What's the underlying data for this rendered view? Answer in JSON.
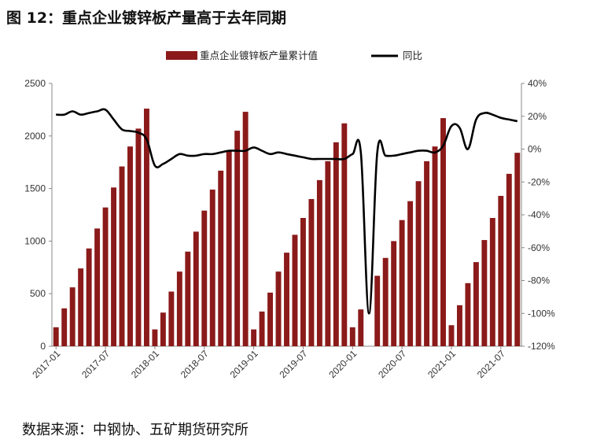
{
  "title": "图 12：重点企业镀锌板产量高于去年同期",
  "source": "数据来源：中钢协、五矿期货研究所",
  "colors": {
    "bar": "#8b1a1a",
    "line": "#000000"
  },
  "chart_data": {
    "type": "bar",
    "title": "",
    "x_tick_labels": [
      "2017-01",
      "2017-07",
      "2018-01",
      "2018-07",
      "2019-01",
      "2019-07",
      "2020-01",
      "2020-07",
      "2021-01",
      "2021-07"
    ],
    "categories": [
      "2017-01",
      "2017-02",
      "2017-03",
      "2017-04",
      "2017-05",
      "2017-06",
      "2017-07",
      "2017-08",
      "2017-09",
      "2017-10",
      "2017-11",
      "2017-12",
      "2018-01",
      "2018-02",
      "2018-03",
      "2018-04",
      "2018-05",
      "2018-06",
      "2018-07",
      "2018-08",
      "2018-09",
      "2018-10",
      "2018-11",
      "2018-12",
      "2019-01",
      "2019-02",
      "2019-03",
      "2019-04",
      "2019-05",
      "2019-06",
      "2019-07",
      "2019-08",
      "2019-09",
      "2019-10",
      "2019-11",
      "2019-12",
      "2020-01",
      "2020-02",
      "2020-03",
      "2020-04",
      "2020-05",
      "2020-06",
      "2020-07",
      "2020-08",
      "2020-09",
      "2020-10",
      "2020-11",
      "2020-12",
      "2021-01",
      "2021-02",
      "2021-03",
      "2021-04",
      "2021-05",
      "2021-06",
      "2021-07",
      "2021-08",
      "2021-09"
    ],
    "series": [
      {
        "name": "重点企业镀锌板产量累计值",
        "axis": "left",
        "type": "bar",
        "values": [
          180,
          360,
          560,
          740,
          930,
          1120,
          1320,
          1510,
          1710,
          1900,
          2070,
          2260,
          160,
          320,
          520,
          710,
          900,
          1090,
          1290,
          1490,
          1670,
          1860,
          2050,
          2230,
          160,
          330,
          510,
          710,
          890,
          1060,
          1220,
          1400,
          1580,
          1760,
          1940,
          2120,
          180,
          350,
          null,
          670,
          840,
          1000,
          1200,
          1380,
          1570,
          1760,
          1900,
          2170,
          200,
          390,
          600,
          800,
          1010,
          1220,
          1430,
          1640,
          1840
        ]
      },
      {
        "name": "同比",
        "axis": "right",
        "type": "line",
        "values": [
          21,
          21,
          23,
          21,
          22,
          23,
          24,
          18,
          12,
          11,
          10,
          6,
          -10,
          -9,
          -6,
          -3,
          -4,
          -4,
          -3,
          -3,
          -2,
          -1,
          -1,
          -1,
          1,
          -1,
          -3,
          -2,
          -3,
          -4,
          -5,
          -6,
          -6,
          -6,
          -6,
          -6,
          -3,
          -2,
          -100,
          -2,
          -4,
          -4,
          -3,
          -2,
          -1,
          -1,
          -2,
          2,
          14,
          13,
          0,
          18,
          22,
          21,
          19,
          18,
          17
        ]
      }
    ],
    "y_left": {
      "min": 0,
      "max": 2500,
      "ticks": [
        0,
        500,
        1000,
        1500,
        2000,
        2500
      ]
    },
    "y_right": {
      "min": -120,
      "max": 40,
      "ticks": [
        "-120%",
        "-100%",
        "-80%",
        "-60%",
        "-40%",
        "-20%",
        "0%",
        "20%",
        "40%"
      ]
    },
    "legend_position": "top-center",
    "grid": false
  }
}
